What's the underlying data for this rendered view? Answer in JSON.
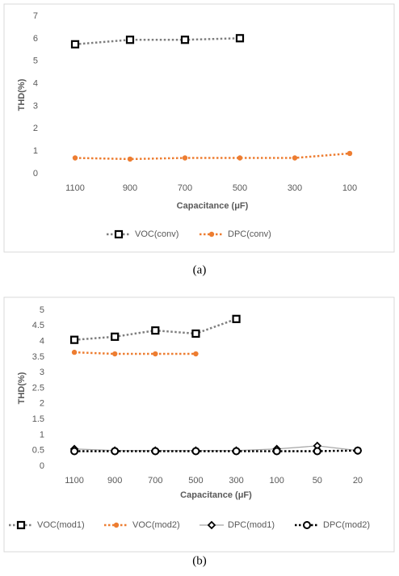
{
  "chart_data": [
    {
      "type": "line",
      "caption": "(a)",
      "xlabel": "Capacitance  (μF)",
      "ylabel": "THD(%)",
      "categories": [
        "1100",
        "900",
        "700",
        "500",
        "300",
        "100"
      ],
      "ylim": [
        0,
        7
      ],
      "yticks": [
        0,
        1,
        2,
        3,
        4,
        5,
        6,
        7
      ],
      "grid": false,
      "legend": "bottom",
      "series": [
        {
          "name": "VOC(conv)",
          "color": "#7f7f7f",
          "marker": "square",
          "marker_color": "#000000",
          "dash": "dotted",
          "values": [
            5.75,
            5.95,
            5.95,
            6.02,
            null,
            null
          ]
        },
        {
          "name": "DPC(conv)",
          "color": "#ed7d31",
          "marker": "dot",
          "marker_color": "#ed7d31",
          "dash": "dotted",
          "values": [
            0.7,
            0.65,
            0.7,
            0.7,
            0.7,
            0.9
          ]
        }
      ]
    },
    {
      "type": "line",
      "caption": "(b)",
      "xlabel": "Capacitance  (μF)",
      "ylabel": "THD(%)",
      "categories": [
        "1100",
        "900",
        "700",
        "500",
        "300",
        "100",
        "50",
        "20"
      ],
      "ylim": [
        0,
        5
      ],
      "yticks": [
        0,
        0.5,
        1,
        1.5,
        2,
        2.5,
        3,
        3.5,
        4,
        4.5,
        5
      ],
      "grid": false,
      "legend": "bottom",
      "series": [
        {
          "name": "VOC(mod1)",
          "color": "#7f7f7f",
          "marker": "square",
          "marker_color": "#000000",
          "dash": "dotted",
          "values": [
            4.05,
            4.15,
            4.35,
            4.25,
            4.72,
            null,
            null,
            null
          ]
        },
        {
          "name": "VOC(mod2)",
          "color": "#ed7d31",
          "marker": "dot",
          "marker_color": "#ed7d31",
          "dash": "dotted",
          "values": [
            3.65,
            3.6,
            3.6,
            3.6,
            null,
            null,
            null,
            null
          ]
        },
        {
          "name": "DPC(mod1)",
          "color": "#a5a5a5",
          "marker": "diamond",
          "marker_color": "#000000",
          "dash": "solid",
          "values": [
            0.55,
            0.5,
            0.5,
            0.5,
            0.5,
            0.55,
            0.65,
            0.5
          ]
        },
        {
          "name": "DPC(mod2)",
          "color": "#000000",
          "marker": "circle",
          "marker_color": "#000000",
          "dash": "dotted",
          "values": [
            0.48,
            0.48,
            0.48,
            0.48,
            0.48,
            0.48,
            0.48,
            0.5
          ]
        }
      ]
    }
  ]
}
